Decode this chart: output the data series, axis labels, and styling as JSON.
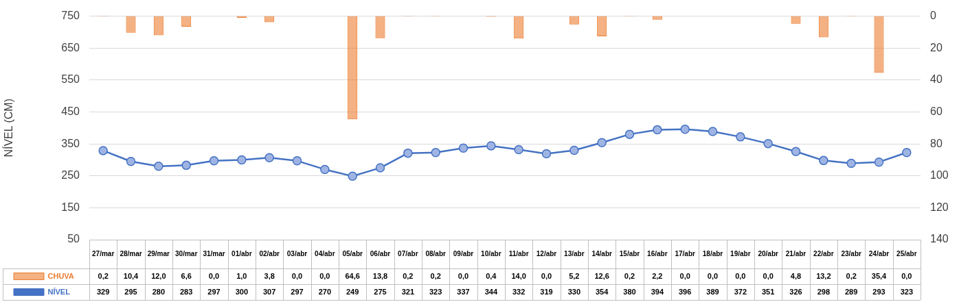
{
  "chart_data": {
    "type": "bar",
    "ylabel": "NÍVEL (CM)",
    "categories": [
      "27/mar",
      "28/mar",
      "29/mar",
      "30/mar",
      "31/mar",
      "01/abr",
      "02/abr",
      "03/abr",
      "04/abr",
      "05/abr",
      "06/abr",
      "07/abr",
      "08/abr",
      "09/abr",
      "10/abr",
      "11/abr",
      "12/abr",
      "13/abr",
      "14/abr",
      "15/abr",
      "16/abr",
      "17/abr",
      "18/abr",
      "19/abr",
      "20/abr",
      "21/abr",
      "22/abr",
      "23/abr",
      "24/abr",
      "25/abr"
    ],
    "series": [
      {
        "name": "CHUVA",
        "axis": "y2",
        "color": "#ed7d31",
        "values": [
          0.2,
          10.4,
          12.0,
          6.6,
          0.0,
          1.0,
          3.8,
          0.0,
          0.0,
          64.6,
          13.8,
          0.2,
          0.2,
          0.0,
          0.4,
          14.0,
          0.0,
          5.2,
          12.6,
          0.2,
          2.2,
          0.0,
          0.0,
          0.0,
          0.0,
          4.8,
          13.2,
          0.2,
          35.4,
          0.0
        ],
        "value_labels": [
          "0,2",
          "10,4",
          "12,0",
          "6,6",
          "0,0",
          "1,0",
          "3,8",
          "0,0",
          "0,0",
          "64,6",
          "13,8",
          "0,2",
          "0,2",
          "0,0",
          "0,4",
          "14,0",
          "0,0",
          "5,2",
          "12,6",
          "0,2",
          "2,2",
          "0,0",
          "0,0",
          "0,0",
          "0,0",
          "4,8",
          "13,2",
          "0,2",
          "35,4",
          "0,0"
        ]
      },
      {
        "name": "NÍVEL",
        "type": "line",
        "color": "#4472c4",
        "values": [
          329,
          295,
          280,
          283,
          297,
          300,
          307,
          297,
          270,
          249,
          275,
          321,
          323,
          337,
          344,
          332,
          319,
          330,
          354,
          380,
          394,
          396,
          389,
          372,
          351,
          326,
          298,
          289,
          293,
          323
        ],
        "value_labels": [
          "329",
          "295",
          "280",
          "283",
          "297",
          "300",
          "307",
          "297",
          "270",
          "249",
          "275",
          "321",
          "323",
          "337",
          "344",
          "332",
          "319",
          "330",
          "354",
          "380",
          "394",
          "396",
          "389",
          "372",
          "351",
          "326",
          "298",
          "289",
          "293",
          "323"
        ]
      }
    ],
    "ylim": [
      50,
      750
    ],
    "yticks": [
      50,
      150,
      250,
      350,
      450,
      550,
      650,
      750
    ],
    "y2lim": [
      140,
      0
    ],
    "y2ticks": [
      0,
      20,
      40,
      60,
      80,
      100,
      120,
      140
    ],
    "grid": "y",
    "legend": "bottom left",
    "marker": "circle",
    "line_style": "solid"
  }
}
